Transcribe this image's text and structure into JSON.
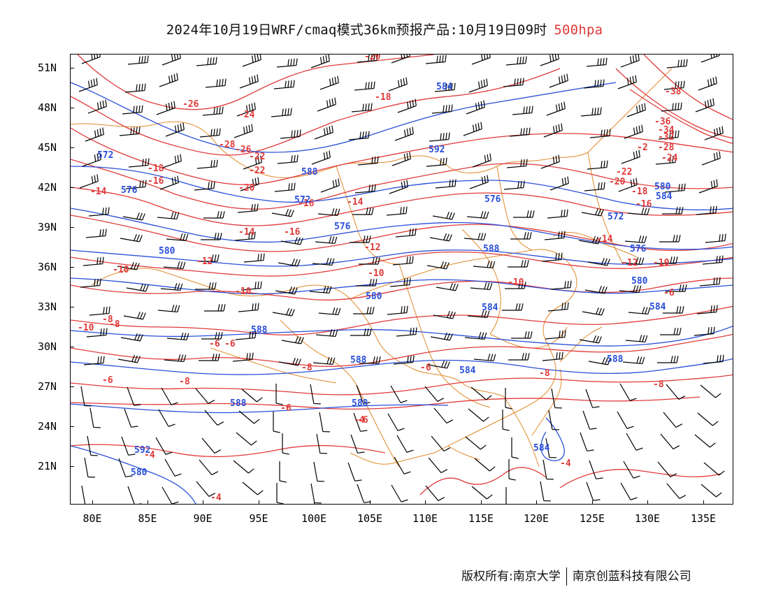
{
  "title": {
    "main": "2024年10月19日WRF/cmaq模式36km预报产品:10月19日09时",
    "level": "500hpa"
  },
  "axes": {
    "y_ticks": [
      "51N",
      "48N",
      "45N",
      "42N",
      "39N",
      "36N",
      "33N",
      "30N",
      "27N",
      "24N",
      "21N"
    ],
    "x_ticks": [
      "80E",
      "85E",
      "90E",
      "95E",
      "100E",
      "105E",
      "110E",
      "115E",
      "120E",
      "125E",
      "130E",
      "135E"
    ]
  },
  "colors": {
    "temperature_contour": "#e03a3a",
    "height_contour": "#2a4fd8",
    "border": "#e08a2a",
    "wind_barb": "#000000"
  },
  "temperature_labels": [
    "-20",
    "-18",
    "-24",
    "-26",
    "-28",
    "-26",
    "-22",
    "-22",
    "-20",
    "-18",
    "-16",
    "-14",
    "-16",
    "-14",
    "-16",
    "-14",
    "-12",
    "-10",
    "-12",
    "-10",
    "-10",
    "-10",
    "-8",
    "-10",
    "-8",
    "-6",
    "-6",
    "-8",
    "-8",
    "-6",
    "-6",
    "-8",
    "-6",
    "-6",
    "-4",
    "-4",
    "-4",
    "-4",
    "-38",
    "-36",
    "-34",
    "-32",
    "-2",
    "-28",
    "-24",
    "-22",
    "-20",
    "-18",
    "-16",
    "-14",
    "-12",
    "-10",
    "-6",
    "-8"
  ],
  "height_labels": [
    "584",
    "592",
    "588",
    "572",
    "576",
    "572",
    "576",
    "580",
    "588",
    "576",
    "572",
    "580",
    "584",
    "576",
    "580",
    "584",
    "580",
    "584",
    "588",
    "588",
    "584",
    "588",
    "588",
    "588",
    "592",
    "580",
    "584"
  ],
  "footer": {
    "left": "版权所有:南京大学",
    "right": "南京创蓝科技有限公司"
  }
}
